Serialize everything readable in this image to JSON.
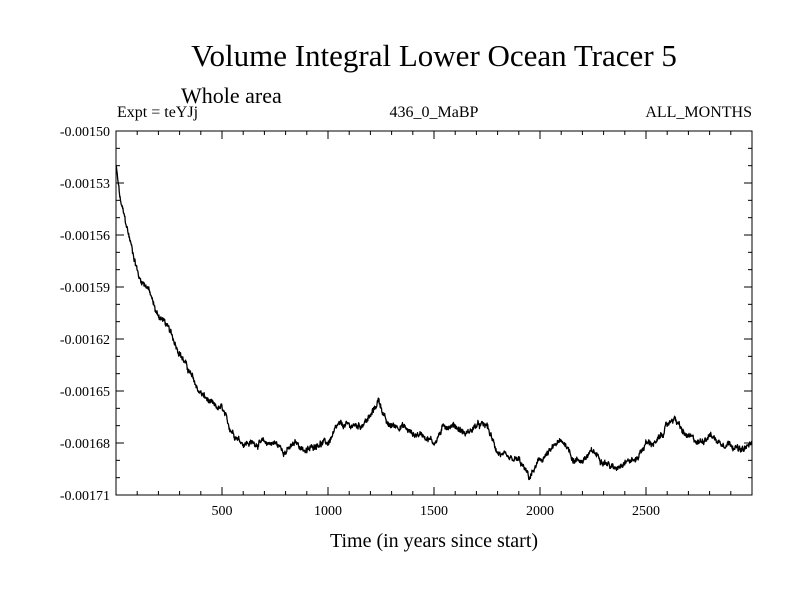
{
  "chart_data": {
    "type": "line",
    "title": "Volume Integral Lower Ocean Tracer 5",
    "subtitle": "Whole area",
    "experiment": "Expt = teYJj",
    "period": "436_0_MaBP",
    "months": "ALL_MONTHS",
    "xlabel": "Time (in years since start)",
    "ylabel": "",
    "xlim": [
      0,
      3000
    ],
    "ylim": [
      -0.00171,
      -0.0015
    ],
    "x_ticks": [
      500,
      1000,
      1500,
      2000,
      2500
    ],
    "x_tick_labels": [
      "500",
      "1000",
      "1500",
      "2000",
      "2500"
    ],
    "y_ticks": [
      -0.0015,
      -0.00153,
      -0.00156,
      -0.00159,
      -0.00162,
      -0.00165,
      -0.00168,
      -0.00171
    ],
    "y_tick_labels": [
      "-0.00150",
      "-0.00153",
      "-0.00156",
      "-0.00159",
      "-0.00162",
      "-0.00165",
      "-0.00168",
      "-0.00171"
    ],
    "grid": false,
    "series": [
      {
        "name": "tracer5",
        "color": "#000000",
        "x": [
          0,
          20,
          50,
          80,
          110,
          150,
          190,
          230,
          270,
          310,
          350,
          390,
          430,
          470,
          500,
          530,
          560,
          600,
          650,
          700,
          750,
          800,
          850,
          900,
          950,
          1000,
          1050,
          1100,
          1150,
          1200,
          1240,
          1280,
          1350,
          1400,
          1450,
          1500,
          1550,
          1600,
          1650,
          1700,
          1750,
          1780,
          1800,
          1850,
          1900,
          1950,
          2000,
          2050,
          2080,
          2120,
          2160,
          2200,
          2250,
          2300,
          2350,
          2400,
          2450,
          2500,
          2550,
          2600,
          2630,
          2680,
          2750,
          2800,
          2850,
          2900,
          2950,
          3000
        ],
        "y": [
          -0.00152,
          -0.00154,
          -0.001555,
          -0.00157,
          -0.001585,
          -0.00159,
          -0.001605,
          -0.00161,
          -0.00162,
          -0.00163,
          -0.00164,
          -0.00165,
          -0.001655,
          -0.00166,
          -0.00166,
          -0.00167,
          -0.001675,
          -0.00168,
          -0.00168,
          -0.00168,
          -0.00168,
          -0.001685,
          -0.00168,
          -0.001685,
          -0.00168,
          -0.00168,
          -0.00167,
          -0.00167,
          -0.00167,
          -0.001665,
          -0.001655,
          -0.00167,
          -0.00167,
          -0.001675,
          -0.001675,
          -0.00168,
          -0.00167,
          -0.00167,
          -0.001675,
          -0.00167,
          -0.00167,
          -0.00168,
          -0.001685,
          -0.00169,
          -0.00169,
          -0.0017,
          -0.00169,
          -0.001685,
          -0.00168,
          -0.00168,
          -0.00169,
          -0.00169,
          -0.001685,
          -0.00169,
          -0.001695,
          -0.00169,
          -0.00169,
          -0.00168,
          -0.00168,
          -0.00167,
          -0.001665,
          -0.001675,
          -0.00168,
          -0.001675,
          -0.00168,
          -0.00168,
          -0.001685,
          -0.00168
        ]
      }
    ]
  }
}
